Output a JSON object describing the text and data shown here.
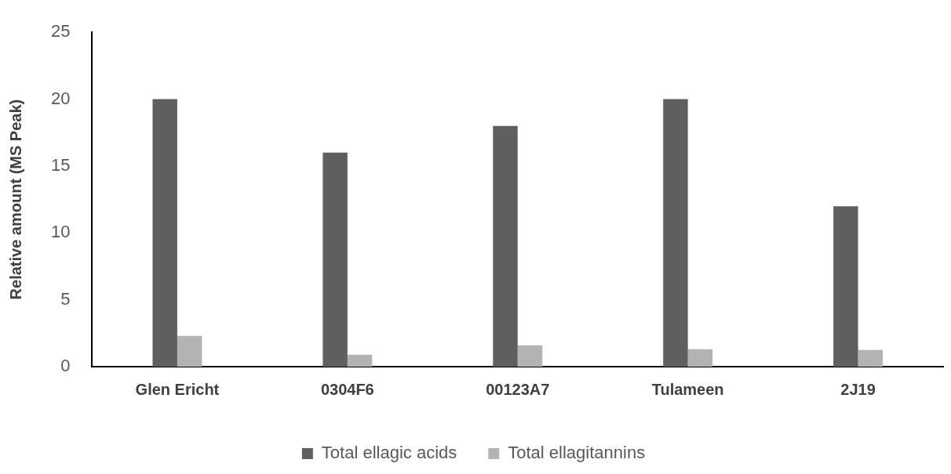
{
  "chart_data": {
    "type": "bar",
    "ylabel": "Relative amount (MS Peak)",
    "categories": [
      "Glen Ericht",
      "0304F6",
      "00123A7",
      "Tulameen",
      "2J19"
    ],
    "series": [
      {
        "name": "Total ellagic acids",
        "color": "#5f5f5f",
        "values": [
          20,
          16,
          18,
          20,
          12
        ]
      },
      {
        "name": "Total ellagitannins",
        "color": "#b3b3b3",
        "values": [
          2.3,
          0.9,
          1.6,
          1.3,
          1.25
        ]
      }
    ],
    "ylim": [
      0,
      25
    ],
    "yticks": [
      0,
      5,
      10,
      15,
      20,
      25
    ],
    "grid": false,
    "legend": "bottom"
  }
}
